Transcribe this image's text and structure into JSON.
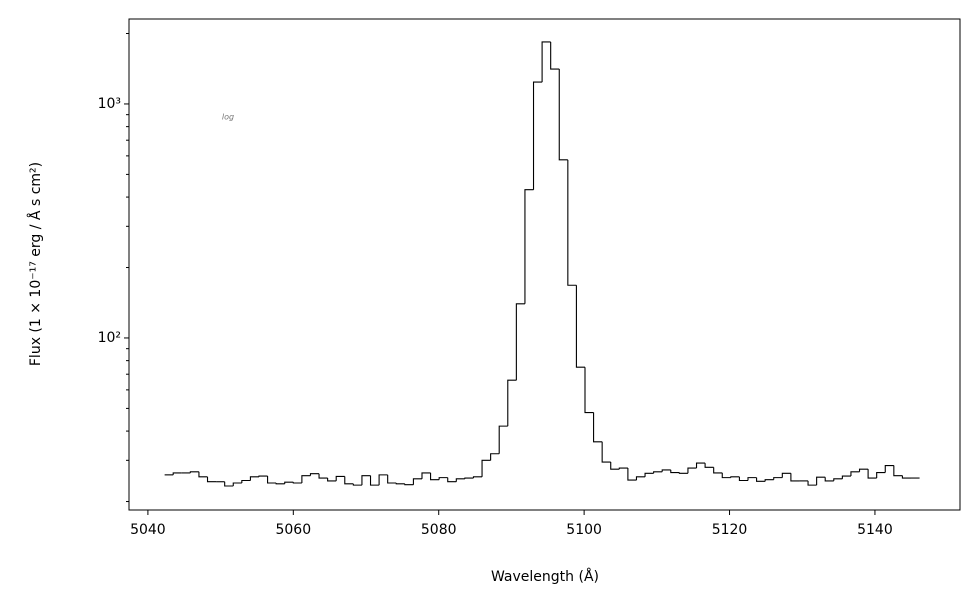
{
  "chart_data": {
    "type": "histogram",
    "annotation": "log",
    "xlabel": "Wavelength (Å)",
    "ylabel": "Flux (1 × 10⁻¹⁷ erg / Å s cm²)",
    "log_y": true,
    "color": "#000000",
    "bins": [
      5042.3,
      5043.48,
      5044.66,
      5045.84,
      5047.02,
      5048.2,
      5049.38,
      5050.56,
      5051.74,
      5052.92,
      5054.1,
      5055.28,
      5056.46,
      5057.64,
      5058.82,
      5060.0,
      5061.18,
      5062.36,
      5063.54,
      5064.72,
      5065.9,
      5067.08,
      5068.26,
      5069.44,
      5070.62,
      5071.8,
      5072.98,
      5074.16,
      5075.34,
      5076.52,
      5077.7,
      5078.88,
      5080.06,
      5081.24,
      5082.42,
      5083.6,
      5084.78,
      5085.96,
      5087.14,
      5088.32,
      5089.5,
      5090.68,
      5091.86,
      5093.04,
      5094.22,
      5095.4,
      5096.58,
      5097.76,
      5098.94,
      5100.12,
      5101.3,
      5102.48,
      5103.66,
      5104.84,
      5106.02,
      5107.2,
      5108.38,
      5109.56,
      5110.74,
      5111.92,
      5113.1,
      5114.28,
      5115.46,
      5116.64,
      5117.82,
      5119.0,
      5120.18,
      5121.36,
      5122.54,
      5123.72,
      5124.9,
      5126.08,
      5127.26,
      5128.44,
      5129.62,
      5130.8,
      5131.98,
      5133.16,
      5134.34,
      5135.52,
      5136.7,
      5137.88,
      5139.06,
      5140.24,
      5141.42,
      5142.6,
      5143.78,
      5144.96,
      5146.14
    ],
    "values": [
      26,
      26.5,
      26.5,
      26.8,
      25.5,
      24.3,
      24.3,
      23.3,
      24,
      24.6,
      25.5,
      25.7,
      24,
      23.8,
      24.2,
      24,
      25.8,
      26.3,
      25.2,
      24.5,
      25.6,
      23.8,
      23.5,
      25.8,
      23.5,
      26,
      24,
      23.8,
      23.6,
      25,
      26.5,
      24.8,
      25.3,
      24.3,
      25,
      25.2,
      25.5,
      30,
      32,
      42,
      66,
      140,
      430,
      1240,
      1840,
      1410,
      577,
      168,
      75,
      48,
      36,
      29.5,
      27.5,
      27.8,
      24.7,
      25.5,
      26.4,
      26.8,
      27.3,
      26.6,
      26.4,
      27.8,
      29.2,
      28,
      26.5,
      25.3,
      25.5,
      24.6,
      25.3,
      24.4,
      24.8,
      25.3,
      26.4,
      24.5,
      24.5,
      23.5,
      25.4,
      24.5,
      25,
      25.7,
      26.8,
      27.5,
      25.2,
      26.6,
      28.5,
      25.8,
      25.2,
      25.2
    ],
    "xlim": [
      5037.4,
      5151.7
    ],
    "xticks": [
      5040,
      5060,
      5080,
      5100,
      5120,
      5140
    ],
    "ylim": [
      18.4,
      2307
    ],
    "yticks": [
      {
        "value": 100,
        "label": "10²"
      },
      {
        "value": 1000,
        "label": "10³"
      }
    ],
    "yminor_ticks": [
      20,
      30,
      40,
      50,
      60,
      70,
      80,
      90,
      200,
      300,
      400,
      500,
      600,
      700,
      800,
      900,
      2000
    ]
  }
}
